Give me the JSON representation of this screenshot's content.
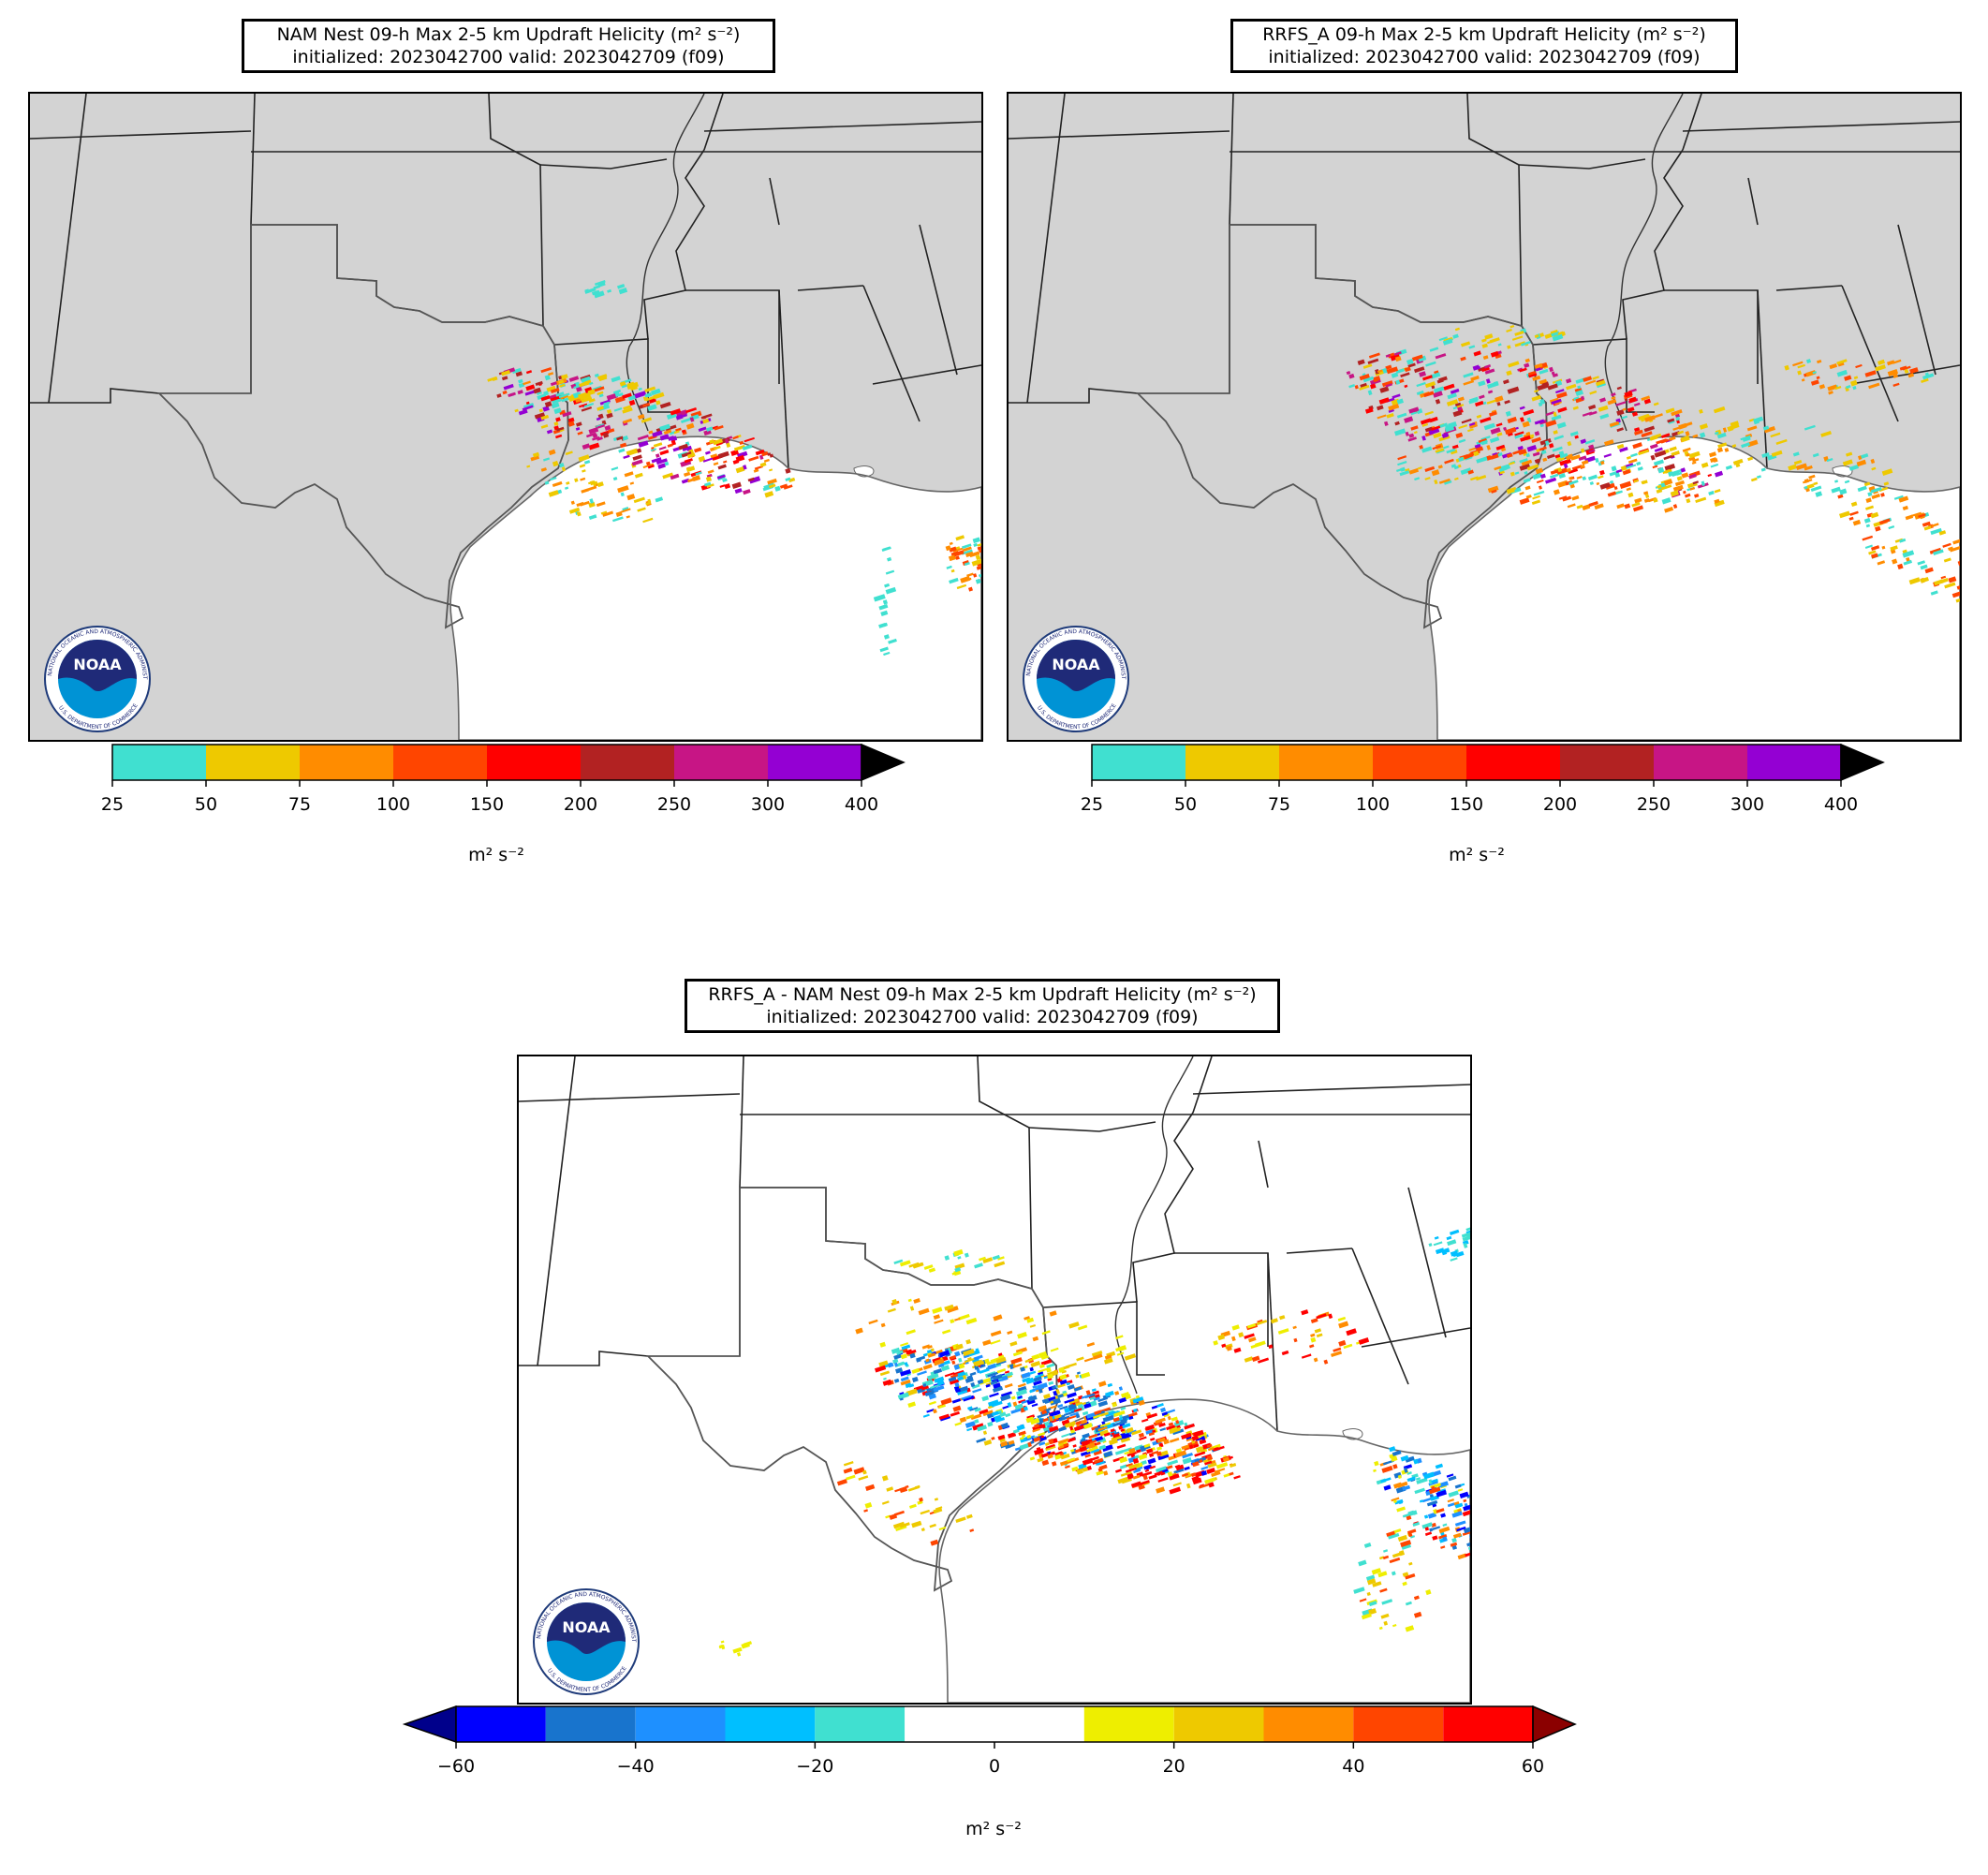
{
  "panels": [
    {
      "id": "nam",
      "title_line1": "NAM Nest 09-h Max 2-5 km Updraft Helicity (m² s⁻²)",
      "title_line2": "initialized: 2023042700 valid: 2023042709 (f09)",
      "land_color": "#d3d3d3",
      "colorbar": {
        "ticks": [
          "25",
          "50",
          "75",
          "100",
          "150",
          "200",
          "250",
          "300",
          "400"
        ],
        "colors": [
          "#40e0d0",
          "#eec900",
          "#ff8c00",
          "#ff4500",
          "#ff0000",
          "#b22222",
          "#c71585",
          "#9400d3"
        ],
        "extend_max_color": "#000000",
        "units": "m² s⁻²"
      }
    },
    {
      "id": "rrfs",
      "title_line1": "RRFS_A 09-h Max 2-5 km Updraft Helicity (m² s⁻²)",
      "title_line2": "initialized: 2023042700 valid: 2023042709 (f09)",
      "land_color": "#d3d3d3",
      "colorbar": {
        "ticks": [
          "25",
          "50",
          "75",
          "100",
          "150",
          "200",
          "250",
          "300",
          "400"
        ],
        "colors": [
          "#40e0d0",
          "#eec900",
          "#ff8c00",
          "#ff4500",
          "#ff0000",
          "#b22222",
          "#c71585",
          "#9400d3"
        ],
        "extend_max_color": "#000000",
        "units": "m² s⁻²"
      }
    },
    {
      "id": "diff",
      "title_line1": "RRFS_A - NAM Nest 09-h Max 2-5 km Updraft Helicity (m² s⁻²)",
      "title_line2": "initialized: 2023042700 valid: 2023042709 (f09)",
      "land_color": "#ffffff",
      "colorbar": {
        "ticks": [
          "−60",
          "−40",
          "−20",
          "0",
          "20",
          "40",
          "60"
        ],
        "colors": [
          "#0000ff",
          "#1874cd",
          "#1e90ff",
          "#00bfff",
          "#40e0d0",
          "#ffffff",
          "#ffffff",
          "#eeee00",
          "#eec900",
          "#ff8c00",
          "#ff4500",
          "#ff0000"
        ],
        "extend_min_color": "#00008b",
        "extend_max_color": "#8b0000",
        "units": "m² s⁻²"
      }
    }
  ],
  "logo": {
    "text": "NOAA",
    "ring_text": "NATIONAL OCEANIC AND ATMOSPHERIC ADMINISTRATION",
    "ring_text_bottom": "U.S. DEPARTMENT OF COMMERCE"
  }
}
